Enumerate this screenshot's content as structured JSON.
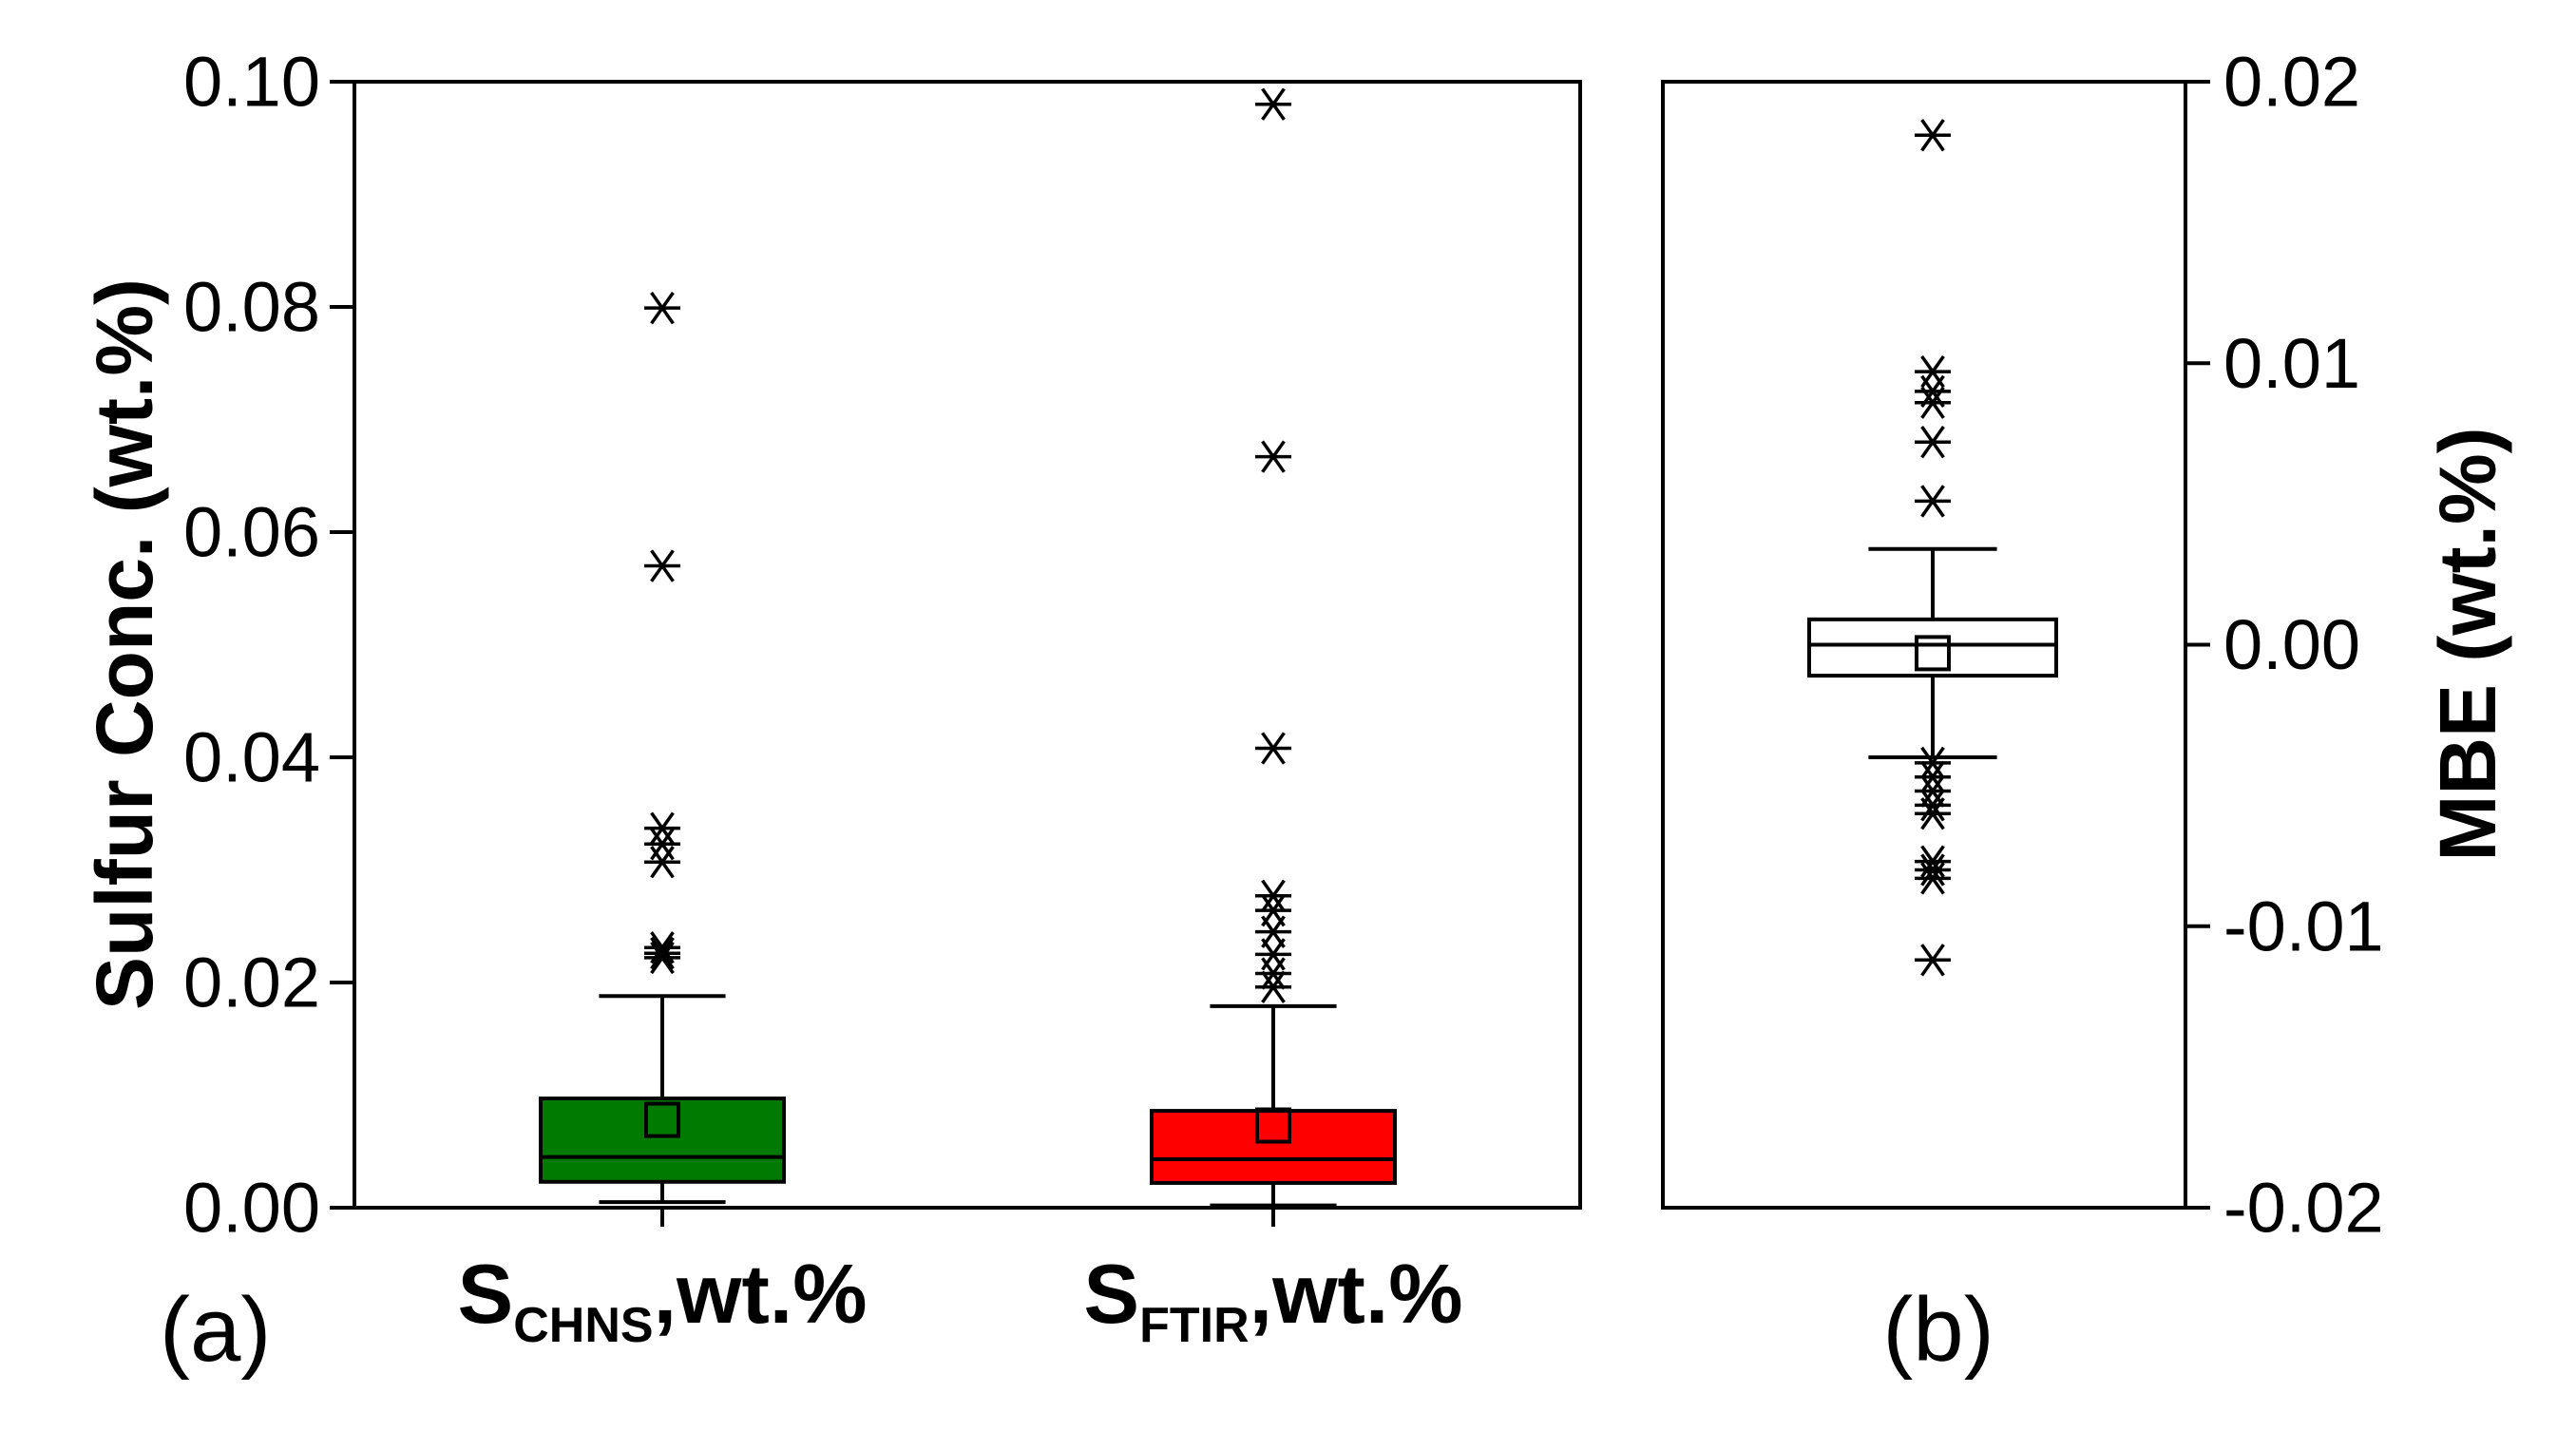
{
  "chart_data": [
    {
      "panel": "(a)",
      "type": "box",
      "ylabel": "Sulfur Conc. (wt.%)",
      "ylim": [
        0,
        0.1
      ],
      "yticks": [
        "0.00",
        "0.02",
        "0.04",
        "0.06",
        "0.08",
        "0.10"
      ],
      "series": [
        {
          "name": "S_CHNS,wt.%",
          "label_main": "S",
          "label_sub": "CHNS",
          "label_rest": ",wt.%",
          "color": "#007a00",
          "q1": 0.0023,
          "median": 0.0045,
          "q3": 0.0097,
          "whisker_low": 0.0005,
          "whisker_high": 0.0188,
          "mean": 0.0078,
          "outliers": [
            0.0222,
            0.0226,
            0.0231,
            0.0307,
            0.0323,
            0.0337,
            0.057,
            0.0799
          ]
        },
        {
          "name": "S_FTIR,wt.%",
          "label_main": "S",
          "label_sub": "FTIR",
          "label_rest": ",wt.%",
          "color": "#ff0000",
          "q1": 0.0022,
          "median": 0.0043,
          "q3": 0.0086,
          "whisker_low": 0.0002,
          "whisker_high": 0.0179,
          "mean": 0.0073,
          "outliers": [
            0.0196,
            0.0208,
            0.0225,
            0.0245,
            0.0264,
            0.0277,
            0.0408,
            0.0667,
            0.098
          ]
        }
      ]
    },
    {
      "panel": "(b)",
      "type": "box",
      "ylabel": "MBE (wt.%)",
      "ylim": [
        -0.02,
        0.02
      ],
      "yticks": [
        "-0.02",
        "-0.01",
        "0.00",
        "0.01",
        "0.02"
      ],
      "series": [
        {
          "name": "MBE",
          "color": "#ffffff",
          "q1": -0.0011,
          "median": 0.0,
          "q3": 0.0009,
          "whisker_low": -0.004,
          "whisker_high": 0.0034,
          "mean": -0.0003,
          "outliers": [
            0.0181,
            0.0097,
            0.009,
            0.0086,
            0.0072,
            0.0051,
            -0.0042,
            -0.0047,
            -0.0052,
            -0.0057,
            -0.006,
            -0.0077,
            -0.008,
            -0.0083,
            -0.0112
          ]
        }
      ]
    }
  ]
}
